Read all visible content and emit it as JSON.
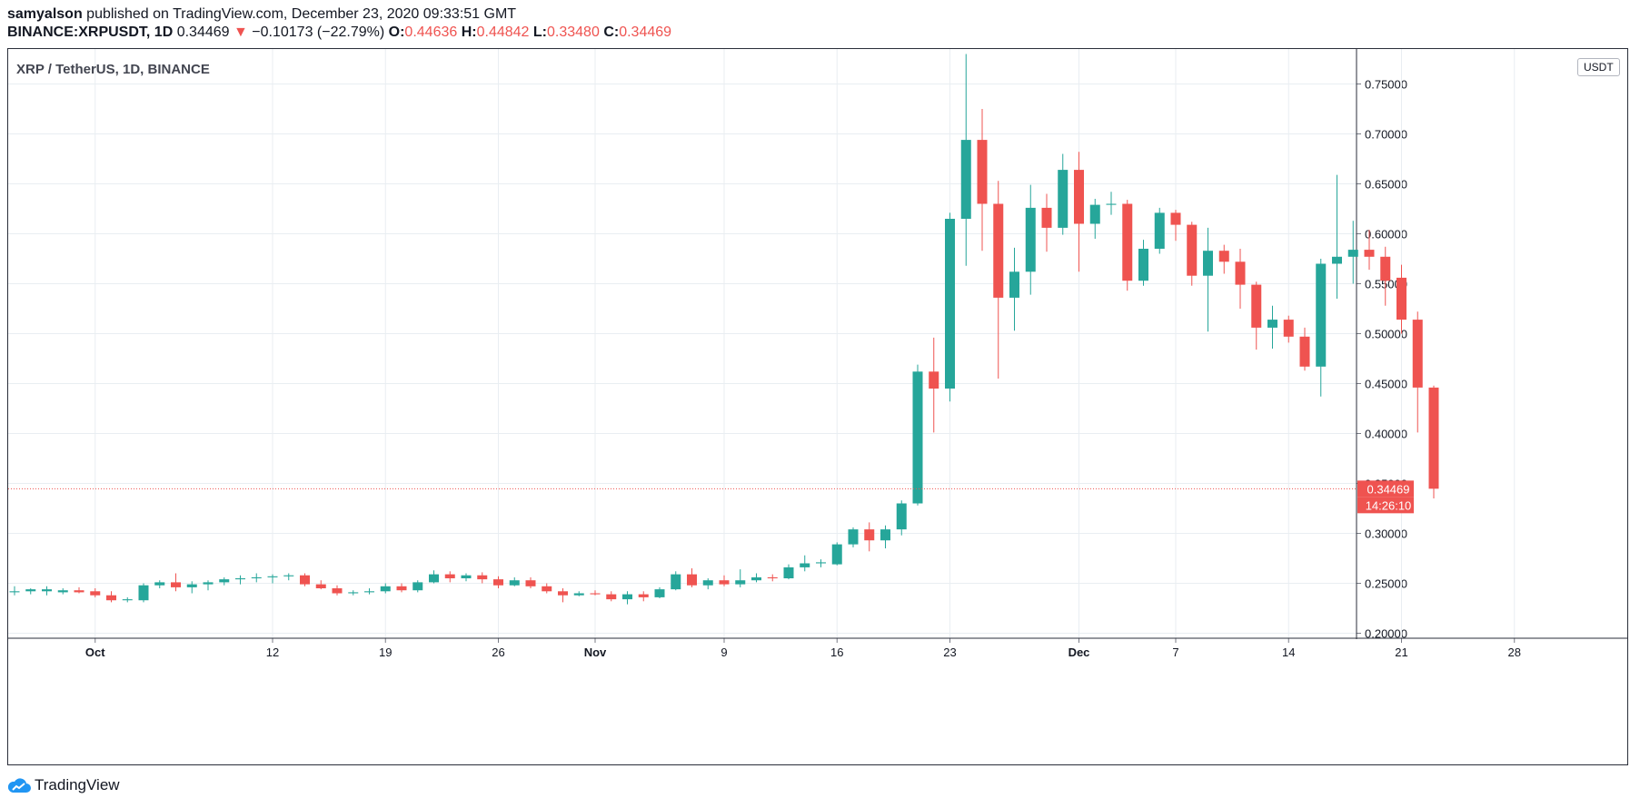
{
  "header": {
    "author": "samyalson",
    "published_text": "published on TradingView.com, December 23, 2020 09:33:51 GMT",
    "symbol": "BINANCE:XRPUSDT, 1D",
    "last": "0.34469",
    "change_arrow": "▼",
    "change": "−0.10173 (−22.79%)",
    "o_label": "O:",
    "o_value": "0.44636",
    "h_label": "H:",
    "h_value": "0.44842",
    "l_label": "L:",
    "l_value": "0.33480",
    "c_label": "C:",
    "c_value": "0.34469"
  },
  "pane_title": "XRP / TetherUS, 1D, BINANCE",
  "currency_label": "USDT",
  "footer": {
    "logo_text": "TradingView"
  },
  "colors": {
    "up": "#26a69a",
    "down": "#ef5350",
    "grid": "#e9eef2",
    "text": "#131722",
    "price_line": "#ef5350"
  },
  "chart_data": {
    "type": "candlestick",
    "title": "XRP / TetherUS, 1D, BINANCE",
    "ylim": [
      0.195,
      0.785
    ],
    "y_ticks": [
      "0.20000",
      "0.25000",
      "0.30000",
      "0.35000",
      "0.40000",
      "0.45000",
      "0.50000",
      "0.55000",
      "0.60000",
      "0.65000",
      "0.70000",
      "0.75000"
    ],
    "x_tick_labels": [
      {
        "label": "Oct",
        "index": 5,
        "bold": true
      },
      {
        "label": "12",
        "index": 16
      },
      {
        "label": "19",
        "index": 23
      },
      {
        "label": "26",
        "index": 30
      },
      {
        "label": "Nov",
        "index": 36,
        "bold": true
      },
      {
        "label": "9",
        "index": 44
      },
      {
        "label": "16",
        "index": 51
      },
      {
        "label": "23",
        "index": 58
      },
      {
        "label": "Dec",
        "index": 66,
        "bold": true
      },
      {
        "label": "7",
        "index": 72
      },
      {
        "label": "14",
        "index": 79
      },
      {
        "label": "21",
        "index": 86
      },
      {
        "label": "28",
        "index": 93
      }
    ],
    "last_price_label": "0.34469",
    "countdown_label": "14:26:10",
    "last_price": 0.34469,
    "candles": [
      [
        0.241,
        0.247,
        0.238,
        0.242
      ],
      [
        0.242,
        0.245,
        0.239,
        0.244
      ],
      [
        0.242,
        0.247,
        0.238,
        0.244
      ],
      [
        0.241,
        0.245,
        0.239,
        0.243
      ],
      [
        0.243,
        0.246,
        0.24,
        0.241
      ],
      [
        0.242,
        0.245,
        0.236,
        0.238
      ],
      [
        0.238,
        0.242,
        0.231,
        0.233
      ],
      [
        0.233,
        0.236,
        0.231,
        0.234
      ],
      [
        0.233,
        0.25,
        0.231,
        0.248
      ],
      [
        0.248,
        0.253,
        0.245,
        0.251
      ],
      [
        0.251,
        0.26,
        0.242,
        0.246
      ],
      [
        0.246,
        0.252,
        0.24,
        0.249
      ],
      [
        0.249,
        0.253,
        0.243,
        0.251
      ],
      [
        0.251,
        0.256,
        0.248,
        0.254
      ],
      [
        0.254,
        0.258,
        0.249,
        0.255
      ],
      [
        0.255,
        0.26,
        0.251,
        0.256
      ],
      [
        0.256,
        0.259,
        0.25,
        0.257
      ],
      [
        0.257,
        0.26,
        0.253,
        0.258
      ],
      [
        0.258,
        0.26,
        0.247,
        0.249
      ],
      [
        0.249,
        0.253,
        0.244,
        0.245
      ],
      [
        0.245,
        0.248,
        0.238,
        0.24
      ],
      [
        0.24,
        0.243,
        0.238,
        0.241
      ],
      [
        0.241,
        0.245,
        0.239,
        0.242
      ],
      [
        0.242,
        0.25,
        0.24,
        0.247
      ],
      [
        0.247,
        0.25,
        0.241,
        0.243
      ],
      [
        0.243,
        0.253,
        0.241,
        0.251
      ],
      [
        0.251,
        0.263,
        0.25,
        0.259
      ],
      [
        0.259,
        0.262,
        0.251,
        0.255
      ],
      [
        0.255,
        0.26,
        0.252,
        0.258
      ],
      [
        0.258,
        0.261,
        0.25,
        0.254
      ],
      [
        0.254,
        0.257,
        0.245,
        0.248
      ],
      [
        0.248,
        0.256,
        0.247,
        0.253
      ],
      [
        0.253,
        0.256,
        0.245,
        0.247
      ],
      [
        0.247,
        0.25,
        0.24,
        0.242
      ],
      [
        0.242,
        0.245,
        0.231,
        0.238
      ],
      [
        0.238,
        0.242,
        0.237,
        0.24
      ],
      [
        0.24,
        0.243,
        0.238,
        0.239
      ],
      [
        0.239,
        0.242,
        0.232,
        0.234
      ],
      [
        0.234,
        0.242,
        0.229,
        0.239
      ],
      [
        0.239,
        0.242,
        0.232,
        0.236
      ],
      [
        0.236,
        0.246,
        0.235,
        0.244
      ],
      [
        0.244,
        0.262,
        0.243,
        0.259
      ],
      [
        0.259,
        0.265,
        0.246,
        0.248
      ],
      [
        0.248,
        0.255,
        0.244,
        0.253
      ],
      [
        0.253,
        0.258,
        0.247,
        0.249
      ],
      [
        0.249,
        0.264,
        0.246,
        0.253
      ],
      [
        0.253,
        0.26,
        0.251,
        0.256
      ],
      [
        0.256,
        0.259,
        0.252,
        0.255
      ],
      [
        0.255,
        0.269,
        0.254,
        0.266
      ],
      [
        0.266,
        0.278,
        0.262,
        0.27
      ],
      [
        0.27,
        0.274,
        0.266,
        0.271
      ],
      [
        0.269,
        0.291,
        0.268,
        0.289
      ],
      [
        0.289,
        0.306,
        0.286,
        0.304
      ],
      [
        0.304,
        0.311,
        0.282,
        0.293
      ],
      [
        0.293,
        0.308,
        0.285,
        0.304
      ],
      [
        0.304,
        0.333,
        0.298,
        0.33
      ],
      [
        0.33,
        0.469,
        0.328,
        0.462
      ],
      [
        0.462,
        0.496,
        0.401,
        0.445
      ],
      [
        0.445,
        0.621,
        0.432,
        0.615
      ],
      [
        0.615,
        0.78,
        0.568,
        0.694
      ],
      [
        0.694,
        0.725,
        0.583,
        0.63
      ],
      [
        0.63,
        0.653,
        0.455,
        0.536
      ],
      [
        0.536,
        0.586,
        0.503,
        0.562
      ],
      [
        0.562,
        0.649,
        0.539,
        0.626
      ],
      [
        0.626,
        0.64,
        0.582,
        0.606
      ],
      [
        0.606,
        0.68,
        0.599,
        0.664
      ],
      [
        0.664,
        0.682,
        0.562,
        0.61
      ],
      [
        0.61,
        0.635,
        0.595,
        0.629
      ],
      [
        0.629,
        0.642,
        0.619,
        0.63
      ],
      [
        0.63,
        0.634,
        0.543,
        0.553
      ],
      [
        0.553,
        0.594,
        0.548,
        0.585
      ],
      [
        0.585,
        0.626,
        0.58,
        0.621
      ],
      [
        0.621,
        0.624,
        0.593,
        0.609
      ],
      [
        0.609,
        0.612,
        0.548,
        0.558
      ],
      [
        0.558,
        0.606,
        0.502,
        0.583
      ],
      [
        0.583,
        0.589,
        0.56,
        0.572
      ],
      [
        0.572,
        0.585,
        0.525,
        0.549
      ],
      [
        0.549,
        0.552,
        0.484,
        0.506
      ],
      [
        0.506,
        0.528,
        0.485,
        0.514
      ],
      [
        0.514,
        0.518,
        0.491,
        0.497
      ],
      [
        0.497,
        0.506,
        0.463,
        0.467
      ],
      [
        0.467,
        0.575,
        0.437,
        0.57
      ],
      [
        0.57,
        0.659,
        0.535,
        0.577
      ],
      [
        0.577,
        0.613,
        0.55,
        0.584
      ],
      [
        0.584,
        0.604,
        0.564,
        0.577
      ],
      [
        0.577,
        0.587,
        0.528,
        0.553
      ],
      [
        0.556,
        0.569,
        0.5,
        0.514
      ],
      [
        0.514,
        0.522,
        0.401,
        0.446
      ],
      [
        0.446,
        0.448,
        0.335,
        0.3447
      ]
    ]
  }
}
